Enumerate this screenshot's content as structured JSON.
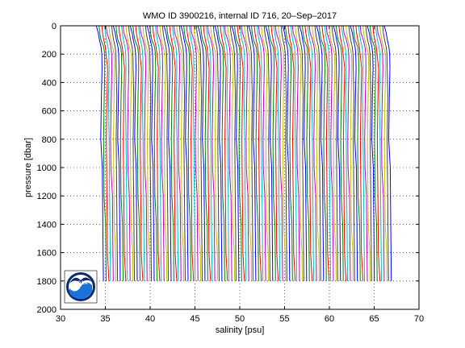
{
  "chart_data": {
    "type": "line",
    "title": "WMO ID 3900216, internal ID 716, 20–Sep–2017",
    "xlabel": "salinity [psu]",
    "ylabel": "pressure [dbar]",
    "xlim": [
      30,
      70
    ],
    "ylim": [
      0,
      2000
    ],
    "y_reversed": true,
    "grid": true,
    "grid_style": "dotted",
    "x_ticks": [
      30,
      35,
      40,
      45,
      50,
      55,
      60,
      65,
      70
    ],
    "y_ticks": [
      0,
      200,
      400,
      600,
      800,
      1000,
      1200,
      1400,
      1600,
      1800,
      2000
    ],
    "series_colors": [
      "#0000ff",
      "#008000",
      "#ff0000",
      "#00bfbf",
      "#bf00bf",
      "#bfbf00",
      "#404040"
    ],
    "profile_shape": {
      "pressure": [
        0,
        50,
        100,
        150,
        200,
        300,
        500,
        800,
        1000,
        1200,
        1400,
        1600,
        1800
      ],
      "salinity_offset": [
        -0.35,
        -0.25,
        -0.1,
        0.1,
        0.2,
        0.25,
        0.2,
        0.15,
        0.2,
        0.25,
        0.3,
        0.35,
        0.4
      ]
    },
    "profiles": {
      "count": 120,
      "first_base_salinity": 34.4,
      "base_salinity_step": 0.27,
      "max_pressure": 1800
    }
  },
  "logo": {
    "text": "NOAA"
  }
}
